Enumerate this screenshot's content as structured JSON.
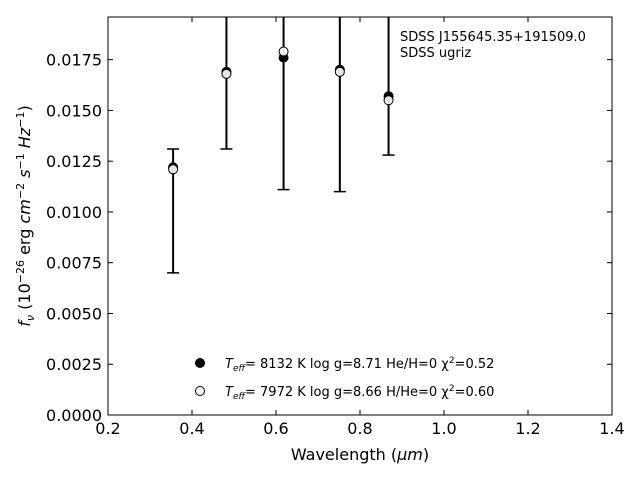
{
  "chart_data": {
    "type": "scatter",
    "xlabel_base": "Wavelength (",
    "xlabel_unit": "μm",
    "xlabel_close": ")",
    "ylabel_f": "f",
    "ylabel_nu": "ν",
    "ylabel_mid": " (10",
    "ylabel_exp": "−26",
    "ylabel_erg": " erg ",
    "ylabel_cm": "cm",
    "ylabel_cm_exp": "−2",
    "ylabel_s": " s",
    "ylabel_s_exp": "−1",
    "ylabel_hz": " Hz",
    "ylabel_hz_exp": "−1",
    "ylabel_close": ")",
    "xlim": [
      0.2,
      1.4
    ],
    "ylim": [
      0.0,
      0.0196
    ],
    "x_ticks": [
      0.2,
      0.4,
      0.6,
      0.8,
      1.0,
      1.2,
      1.4
    ],
    "x_tick_labels": [
      "0.2",
      "0.4",
      "0.6",
      "0.8",
      "1.0",
      "1.2",
      "1.4"
    ],
    "y_ticks": [
      0.0,
      0.0025,
      0.005,
      0.0075,
      0.01,
      0.0125,
      0.015,
      0.0175
    ],
    "y_tick_labels": [
      "0.0000",
      "0.0025",
      "0.0050",
      "0.0075",
      "0.0100",
      "0.0125",
      "0.0150",
      "0.0175"
    ],
    "annotation_lines": [
      "SDSS J155645.35+191509.0",
      "SDSS ugriz"
    ],
    "observed": {
      "x": [
        0.355,
        0.482,
        0.618,
        0.752,
        0.868
      ],
      "y": [
        0.0122,
        0.0169,
        0.0176,
        0.017,
        0.0157
      ],
      "yerr_low": [
        0.007,
        0.0131,
        0.0111,
        0.011,
        0.0128
      ],
      "yerr_high": [
        0.0131,
        0.02,
        0.02,
        0.02,
        0.02
      ]
    },
    "series": [
      {
        "marker": "filled-circle",
        "x": [
          0.355,
          0.482,
          0.618,
          0.752,
          0.868
        ],
        "values": [
          0.0122,
          0.0169,
          0.0176,
          0.017,
          0.0157
        ],
        "legend": {
          "teff_label": "T",
          "teff_sub": "eff",
          "text": "=  8132 K  log g=8.71  He/H=0  χ",
          "chi_exp": "2",
          "chi_val": "=0.52"
        }
      },
      {
        "marker": "open-circle",
        "x": [
          0.355,
          0.482,
          0.618,
          0.752,
          0.868
        ],
        "values": [
          0.0121,
          0.0168,
          0.0179,
          0.0169,
          0.0155
        ],
        "legend": {
          "teff_label": "T",
          "teff_sub": "eff",
          "text": "=  7972 K  log g=8.66  H/He=0  χ",
          "chi_exp": "2",
          "chi_val": "=0.60"
        }
      }
    ],
    "grid": false,
    "legend_position": "bottom-center",
    "colors": {
      "marker": "#000000",
      "background": "#ffffff"
    }
  }
}
